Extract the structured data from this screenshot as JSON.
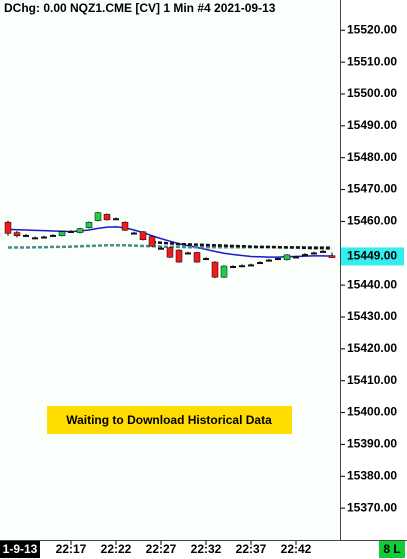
{
  "chart_data": {
    "type": "candlestick",
    "title": "DChg: 0.00 NQZ1.CME [CV]  1 Min   #4 2021-09-13",
    "date_label": "1-9-13",
    "status_label": "8 L",
    "message": "Waiting to Download Historical Data",
    "last_price": {
      "value": 15449,
      "label": "15449.00"
    },
    "categories": [
      null,
      null,
      null,
      null,
      null,
      null,
      null,
      "22:17",
      null,
      null,
      null,
      null,
      "22:22",
      null,
      null,
      null,
      null,
      "22:27",
      null,
      null,
      null,
      null,
      "22:32",
      null,
      null,
      null,
      null,
      "22:37",
      null,
      null,
      null,
      null,
      "22:42",
      null,
      null,
      null,
      null
    ],
    "open": [
      15459.75,
      15456.5,
      15455.75,
      15455,
      15455.25,
      15455.75,
      15455.5,
      15457,
      15456.5,
      15458,
      15460.25,
      15462.25,
      15461,
      15459.75,
      15456.5,
      15456.75,
      15455.25,
      15451.75,
      15451.75,
      15451,
      15450.25,
      15450.25,
      15448.5,
      15447.25,
      15442.5,
      15446,
      15446.25,
      15446.5,
      15447.25,
      15448,
      15448.5,
      15448,
      15449,
      15449.75,
      15450.25,
      15450.75,
      15449.25
    ],
    "high": [
      15460.25,
      15457,
      15456,
      15455.25,
      15455.5,
      15456,
      15457,
      15457.25,
      15458,
      15460,
      15463,
      15462.5,
      15461.25,
      15460,
      15456.75,
      15457,
      15455.5,
      15452,
      15452,
      15451.25,
      15450.5,
      15450.5,
      15448.75,
      15447.5,
      15446.25,
      15446.25,
      15446.5,
      15446.75,
      15447.5,
      15448.25,
      15448.75,
      15449.75,
      15449.25,
      15450,
      15450.5,
      15451,
      15450.25
    ],
    "low": [
      15455.5,
      15455,
      15455.5,
      15454.75,
      15455,
      15455.5,
      15455.25,
      15456.75,
      15456.25,
      15457.75,
      15460,
      15460.25,
      15460.75,
      15457,
      15456.25,
      15454,
      15452,
      15451.5,
      15448.5,
      15447,
      15450,
      15447,
      15448.25,
      15442.25,
      15442.25,
      15445.75,
      15446,
      15446.25,
      15447,
      15447.75,
      15448.25,
      15447.75,
      15448.75,
      15449.5,
      15450,
      15450.5,
      15449
    ],
    "close": [
      15456.25,
      15455.5,
      15455.75,
      15455,
      15455.25,
      15455.75,
      15456.75,
      15457,
      15457.75,
      15459.75,
      15462.75,
      15460.5,
      15461,
      15457.25,
      15456.5,
      15454.25,
      15452.25,
      15451.75,
      15448.75,
      15447.25,
      15450.25,
      15447.25,
      15448.5,
      15442.5,
      15446,
      15446,
      15446.25,
      15446.5,
      15447.25,
      15448,
      15448.5,
      15449.5,
      15449,
      15449.75,
      15450.25,
      15450.75,
      15449
    ],
    "up_color": "#22cc44",
    "down_color": "#ee1c1c",
    "flat_color": "#111111",
    "series": [
      {
        "color": "#1a1acc",
        "style": "solid",
        "values": [
          15457.5,
          15457.4,
          15457.3,
          15457.2,
          15457.1,
          15457,
          15456.9,
          15456.8,
          15457,
          15457.3,
          15457.8,
          15458.2,
          15458.3,
          15458,
          15457.3,
          15456.5,
          15455.5,
          15454.6,
          15453.8,
          15453,
          15452.4,
          15451.8,
          15451.2,
          15450.6,
          15450,
          15449.6,
          15449.3,
          15449,
          15448.9,
          15448.8,
          15448.8,
          15448.9,
          15449,
          15449.1,
          15449.2,
          15449.2,
          15449.1
        ]
      },
      {
        "color": "#4a8a8a",
        "style": "dashed",
        "values": [
          15451.8,
          15451.8,
          15451.8,
          15451.9,
          15451.9,
          15452,
          15452,
          15452.1,
          15452.2,
          15452.3,
          15452.4,
          15452.5,
          15452.5,
          15452.5,
          15452.4,
          15452.3,
          15452.2,
          15452.1,
          15452,
          15452,
          15451.9,
          15451.9,
          15451.9,
          15451.9,
          15451.9,
          15451.9,
          15451.9,
          15451.9,
          15451.9,
          15451.9,
          15451.9,
          15451.9,
          15451.9,
          15451.9,
          15451.9,
          15451.9,
          15451.9
        ]
      },
      {
        "color": "#111111",
        "style": "dashed",
        "values": [
          null,
          null,
          null,
          null,
          null,
          null,
          null,
          null,
          null,
          null,
          null,
          null,
          null,
          null,
          null,
          null,
          15453.5,
          15453.3,
          15453.1,
          15452.9,
          15452.8,
          15452.7,
          15452.6,
          15452.5,
          15452.4,
          15452.3,
          15452.2,
          15452.1,
          15452,
          15452,
          15451.9,
          15451.8,
          15451.8,
          15451.7,
          15451.6,
          15451.6,
          15451.5
        ]
      }
    ],
    "ylim": [
      15360,
      15529.5
    ],
    "yticks": [
      {
        "value": 15520,
        "label": "15520.00"
      },
      {
        "value": 15510,
        "label": "15510.00"
      },
      {
        "value": 15500,
        "label": "15500.00"
      },
      {
        "value": 15490,
        "label": "15490.00"
      },
      {
        "value": 15480,
        "label": "15480.00"
      },
      {
        "value": 15470,
        "label": "15470.00"
      },
      {
        "value": 15460,
        "label": "15460.00"
      },
      {
        "value": 15450,
        "label": "15450.00"
      },
      {
        "value": 15440,
        "label": "15440.00"
      },
      {
        "value": 15430,
        "label": "15430.00"
      },
      {
        "value": 15420,
        "label": "15420.00"
      },
      {
        "value": 15410,
        "label": "15410.00"
      },
      {
        "value": 15400,
        "label": "15400.00"
      },
      {
        "value": 15390,
        "label": "15390.00"
      },
      {
        "value": 15380,
        "label": "15380.00"
      },
      {
        "value": 15370,
        "label": "15370.00"
      }
    ]
  }
}
